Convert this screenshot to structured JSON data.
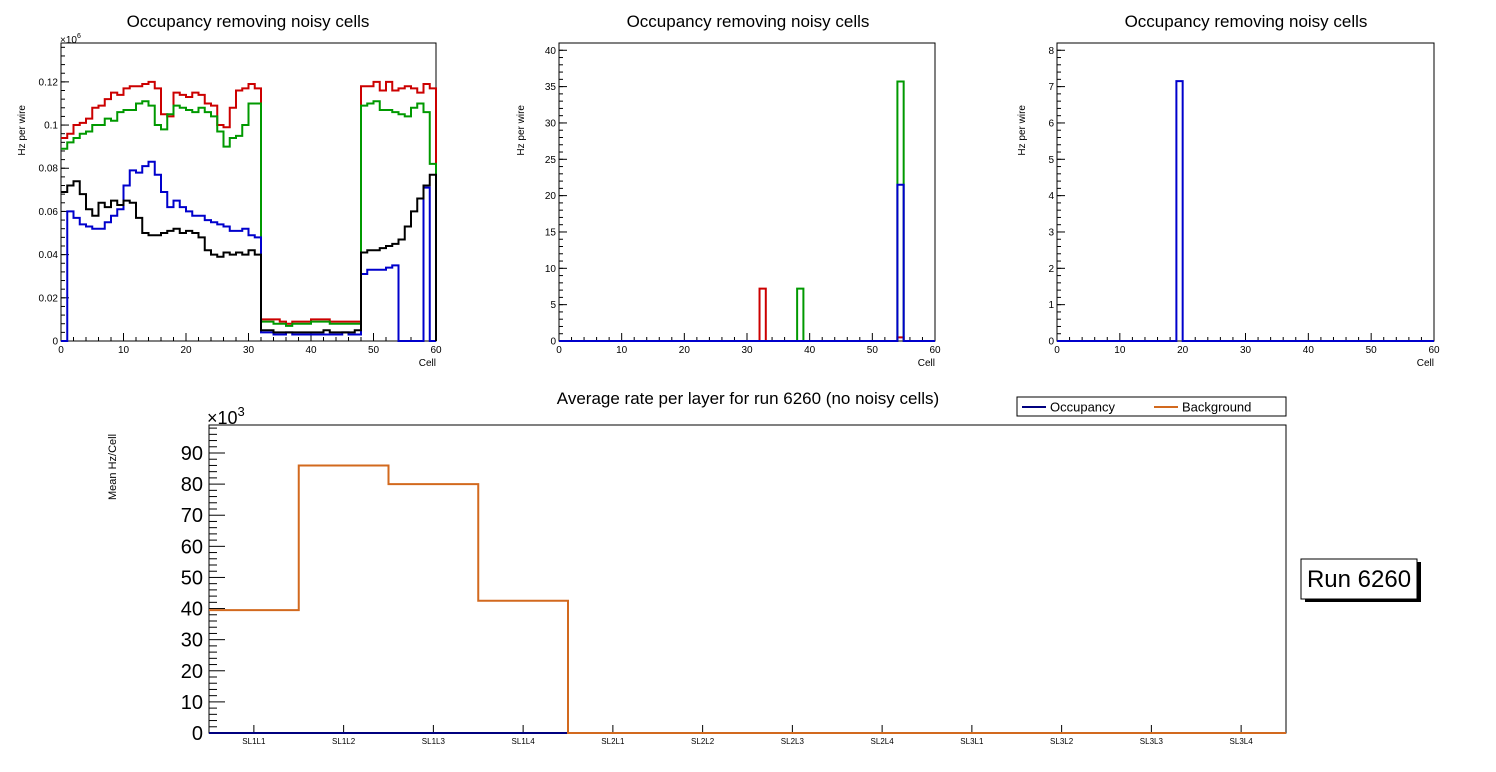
{
  "colors": {
    "red": "#cc0000",
    "green": "#009900",
    "blue": "#0000cc",
    "black": "#000000",
    "orange": "#d2691e",
    "occupancy_legend": "#00007f"
  },
  "chart_data": [
    {
      "type": "histogram",
      "title": "Occupancy removing noisy cells",
      "xlabel": "Cell",
      "ylabel": "Hz per wire",
      "exponent_label": "×10",
      "exponent_power": "6",
      "xlim": [
        0,
        60
      ],
      "ylim": [
        0,
        0.138
      ],
      "xticks": [
        0,
        10,
        20,
        30,
        40,
        50,
        60
      ],
      "yticks": [
        0,
        0.02,
        0.04,
        0.06,
        0.08,
        0.1,
        0.12
      ],
      "ytick_labels": [
        "0",
        "0.02",
        "0.04",
        "0.06",
        "0.08",
        "0.1",
        "0.12"
      ],
      "bin_width": 1,
      "series": [
        {
          "name": "red",
          "color": "#cc0000",
          "values": [
            0.094,
            0.096,
            0.1,
            0.101,
            0.103,
            0.108,
            0.109,
            0.112,
            0.115,
            0.114,
            0.117,
            0.118,
            0.118,
            0.119,
            0.12,
            0.117,
            0.105,
            0.104,
            0.115,
            0.114,
            0.113,
            0.115,
            0.114,
            0.11,
            0.109,
            0.1,
            0.099,
            0.108,
            0.116,
            0.117,
            0.119,
            0.117,
            0.01,
            0.01,
            0.01,
            0.009,
            0.008,
            0.009,
            0.009,
            0.009,
            0.01,
            0.01,
            0.01,
            0.009,
            0.009,
            0.009,
            0.009,
            0.009,
            0.118,
            0.118,
            0.12,
            0.116,
            0.12,
            0.116,
            0.117,
            0.118,
            0.117,
            0.115,
            0.119,
            0.117
          ]
        },
        {
          "name": "green",
          "color": "#009900",
          "values": [
            0.089,
            0.092,
            0.094,
            0.096,
            0.097,
            0.1,
            0.1,
            0.103,
            0.102,
            0.106,
            0.107,
            0.107,
            0.11,
            0.111,
            0.109,
            0.1,
            0.098,
            0.105,
            0.109,
            0.108,
            0.107,
            0.106,
            0.108,
            0.106,
            0.104,
            0.097,
            0.09,
            0.094,
            0.095,
            0.1,
            0.11,
            0.11,
            0.009,
            0.009,
            0.008,
            0.008,
            0.007,
            0.008,
            0.008,
            0.008,
            0.009,
            0.009,
            0.009,
            0.008,
            0.008,
            0.008,
            0.008,
            0.008,
            0.109,
            0.11,
            0.111,
            0.107,
            0.107,
            0.106,
            0.105,
            0.104,
            0.108,
            0.11,
            0.106,
            0.082
          ]
        },
        {
          "name": "blue",
          "color": "#0000cc",
          "values": [
            0.0,
            0.06,
            0.057,
            0.054,
            0.053,
            0.052,
            0.052,
            0.055,
            0.058,
            0.061,
            0.072,
            0.079,
            0.078,
            0.081,
            0.083,
            0.077,
            0.069,
            0.062,
            0.065,
            0.062,
            0.06,
            0.058,
            0.058,
            0.056,
            0.055,
            0.054,
            0.053,
            0.051,
            0.051,
            0.052,
            0.049,
            0.048,
            0.004,
            0.004,
            0.003,
            0.003,
            0.004,
            0.003,
            0.003,
            0.003,
            0.003,
            0.003,
            0.003,
            0.003,
            0.003,
            0.004,
            0.003,
            0.003,
            0.031,
            0.033,
            0.033,
            0.033,
            0.034,
            0.035,
            0.0,
            0.0,
            0.0,
            0.0,
            0.071,
            0.0
          ]
        },
        {
          "name": "black",
          "color": "#000000",
          "values": [
            0.069,
            0.072,
            0.074,
            0.068,
            0.061,
            0.058,
            0.064,
            0.062,
            0.065,
            0.063,
            0.065,
            0.064,
            0.057,
            0.05,
            0.049,
            0.049,
            0.05,
            0.051,
            0.052,
            0.05,
            0.051,
            0.05,
            0.048,
            0.042,
            0.04,
            0.039,
            0.041,
            0.04,
            0.041,
            0.04,
            0.042,
            0.04,
            0.005,
            0.005,
            0.004,
            0.004,
            0.004,
            0.004,
            0.004,
            0.004,
            0.004,
            0.004,
            0.005,
            0.004,
            0.004,
            0.004,
            0.004,
            0.005,
            0.041,
            0.042,
            0.042,
            0.043,
            0.044,
            0.045,
            0.047,
            0.053,
            0.06,
            0.066,
            0.072,
            0.077
          ]
        }
      ]
    },
    {
      "type": "histogram",
      "title": "Occupancy removing noisy cells",
      "xlabel": "Cell",
      "ylabel": "Hz per wire",
      "xlim": [
        0,
        60
      ],
      "ylim": [
        0,
        41
      ],
      "xticks": [
        0,
        10,
        20,
        30,
        40,
        50,
        60
      ],
      "yticks": [
        0,
        5,
        10,
        15,
        20,
        25,
        30,
        35,
        40
      ],
      "ytick_labels": [
        "0",
        "5",
        "10",
        "15",
        "20",
        "25",
        "30",
        "35",
        "40"
      ],
      "bin_width": 1,
      "series": [
        {
          "name": "red",
          "color": "#cc0000",
          "spikes": [
            [
              32,
              7.2
            ],
            [
              54,
              0.5
            ]
          ]
        },
        {
          "name": "green",
          "color": "#009900",
          "spikes": [
            [
              38,
              7.2
            ],
            [
              54,
              35.7
            ]
          ]
        },
        {
          "name": "blue",
          "color": "#0000cc",
          "spikes": [
            [
              54,
              21.5
            ]
          ]
        }
      ]
    },
    {
      "type": "histogram",
      "title": "Occupancy removing noisy cells",
      "xlabel": "Cell",
      "ylabel": "Hz per wire",
      "xlim": [
        0,
        60
      ],
      "ylim": [
        0,
        8.2
      ],
      "xticks": [
        0,
        10,
        20,
        30,
        40,
        50,
        60
      ],
      "yticks": [
        0,
        1,
        2,
        3,
        4,
        5,
        6,
        7,
        8
      ],
      "ytick_labels": [
        "0",
        "1",
        "2",
        "3",
        "4",
        "5",
        "6",
        "7",
        "8"
      ],
      "bin_width": 1,
      "series": [
        {
          "name": "blue",
          "color": "#0000cc",
          "spikes": [
            [
              19,
              7.15
            ]
          ]
        }
      ]
    },
    {
      "type": "histogram",
      "title": "Average rate per layer for run 6260 (no noisy cells)",
      "xlabel": "",
      "ylabel": "Mean Hz/Cell",
      "exponent_label": "×10",
      "exponent_power": "3",
      "ylim": [
        0,
        99
      ],
      "yticks": [
        0,
        10,
        20,
        30,
        40,
        50,
        60,
        70,
        80,
        90
      ],
      "ytick_labels": [
        "0",
        "10",
        "20",
        "30",
        "40",
        "50",
        "60",
        "70",
        "80",
        "90"
      ],
      "categories": [
        "SL1L1",
        "SL1L2",
        "SL1L3",
        "SL1L4",
        "SL2L1",
        "SL2L2",
        "SL2L3",
        "SL2L4",
        "SL3L1",
        "SL3L2",
        "SL3L3",
        "SL3L4"
      ],
      "legend": [
        "Occupancy",
        "Background"
      ],
      "series": [
        {
          "name": "Occupancy",
          "color": "#00007f",
          "values": [
            0,
            0,
            0,
            0,
            0,
            0,
            0,
            0,
            0,
            0,
            0,
            0
          ]
        },
        {
          "name": "Background",
          "color": "#d2691e",
          "values": [
            39.5,
            86,
            80,
            42.5,
            0,
            0,
            0,
            0,
            0,
            0,
            0,
            0
          ]
        }
      ]
    }
  ],
  "run_box": {
    "label": "Run 6260"
  }
}
